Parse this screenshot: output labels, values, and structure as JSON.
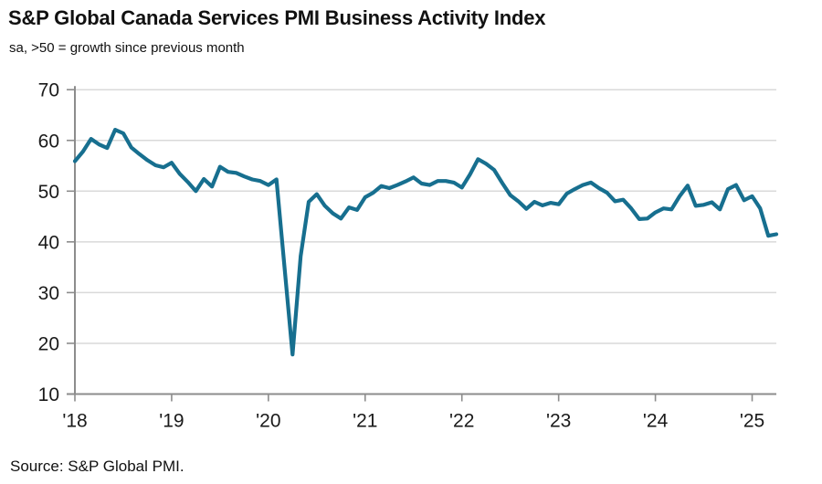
{
  "header": {
    "title": "S&P Global Canada Services PMI Business Activity Index",
    "subtitle": "sa, >50 = growth since previous month"
  },
  "footer": {
    "source": "Source: S&P Global PMI."
  },
  "chart_data": {
    "type": "line",
    "title": "S&P Global Canada Services PMI Business Activity Index",
    "subtitle": "sa, >50 = growth since previous month",
    "x_start": "2018-01",
    "x_frequency": "monthly",
    "x_end": "2025-04",
    "x_tick_labels": [
      "'18",
      "'19",
      "'20",
      "'21",
      "'22",
      "'23",
      "'24",
      "'25"
    ],
    "yticks": [
      10,
      20,
      30,
      40,
      50,
      60,
      70
    ],
    "ylim": [
      10,
      70
    ],
    "grid": true,
    "legend": "none",
    "colors": {
      "line": "#176f8f",
      "grid": "#d9d9d9",
      "axis": "#8c8c8c",
      "text": "#1a1a1a"
    },
    "series": [
      {
        "name": "Services PMI Business Activity Index",
        "values": [
          55.9,
          57.8,
          60.3,
          59.2,
          58.5,
          62.1,
          61.4,
          58.6,
          57.3,
          56.1,
          55.1,
          54.7,
          55.6,
          53.4,
          51.8,
          50.0,
          52.4,
          50.9,
          54.8,
          53.8,
          53.6,
          52.9,
          52.3,
          52.0,
          51.2,
          52.3,
          35.0,
          17.8,
          37.2,
          47.9,
          49.4,
          47.1,
          45.6,
          44.6,
          46.8,
          46.3,
          48.8,
          49.7,
          51.0,
          50.6,
          51.2,
          51.9,
          52.7,
          51.5,
          51.2,
          52.0,
          52.0,
          51.7,
          50.7,
          53.3,
          56.3,
          55.4,
          54.2,
          51.6,
          49.2,
          48.0,
          46.5,
          47.9,
          47.2,
          47.7,
          47.4,
          49.5,
          50.4,
          51.2,
          51.7,
          50.6,
          49.7,
          48.0,
          48.3,
          46.6,
          44.5,
          44.6,
          45.8,
          46.6,
          46.4,
          49.0,
          51.1,
          47.1,
          47.3,
          47.8,
          46.4,
          50.4,
          51.2,
          48.2,
          49.0,
          46.6,
          41.2,
          41.5
        ]
      }
    ]
  }
}
